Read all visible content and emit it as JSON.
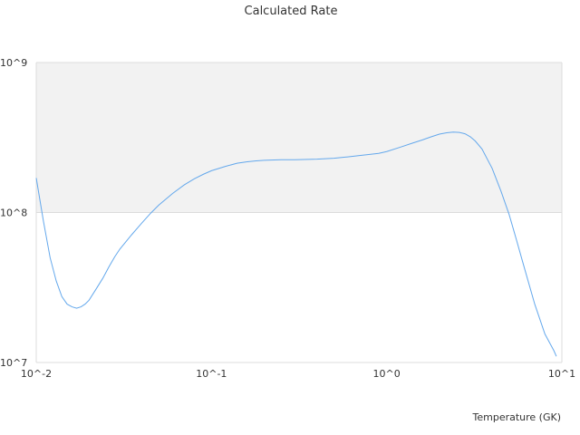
{
  "chart_data": {
    "type": "line",
    "title": "Calculated Rate",
    "xlabel": "Temperature (GK)",
    "ylabel": "",
    "x_scale": "log",
    "y_scale": "log",
    "xlim": [
      0.01,
      10
    ],
    "ylim": [
      10000000,
      1000000000
    ],
    "x_ticks": [
      "10^-2",
      "10^-1",
      "10^0",
      "10^1"
    ],
    "y_ticks": [
      "10^7",
      "10^8",
      "10^9"
    ],
    "grid": true,
    "legend": "none",
    "line_color": "#64a8ec",
    "band_color": "#f2f2f2",
    "series": [
      {
        "x": [
          0.01,
          0.011,
          0.012,
          0.013,
          0.014,
          0.015,
          0.016,
          0.017,
          0.018,
          0.019,
          0.02,
          0.022,
          0.024,
          0.026,
          0.028,
          0.03,
          0.035,
          0.04,
          0.045,
          0.05,
          0.06,
          0.07,
          0.08,
          0.09,
          0.1,
          0.12,
          0.14,
          0.16,
          0.18,
          0.2,
          0.25,
          0.3,
          0.4,
          0.5,
          0.6,
          0.7,
          0.8,
          0.9,
          1.0,
          1.2,
          1.4,
          1.6,
          1.8,
          2.0,
          2.2,
          2.4,
          2.6,
          2.8,
          3.0,
          3.2,
          3.5,
          4.0,
          4.5,
          5.0,
          5.5,
          6.0,
          7.0,
          8.0,
          9.0,
          9.3
        ],
        "y": [
          170000000,
          87000000,
          50000000,
          35000000,
          27500000,
          24500000,
          23500000,
          23000000,
          23500000,
          24500000,
          26000000,
          31000000,
          36500000,
          43500000,
          50500000,
          57000000,
          71000000,
          85000000,
          99000000,
          112000000,
          134000000,
          153000000,
          168000000,
          180000000,
          190000000,
          203000000,
          213000000,
          218000000,
          221000000,
          223000000,
          225000000,
          225000000,
          227000000,
          230000000,
          235000000,
          240000000,
          244000000,
          248000000,
          255000000,
          273000000,
          290000000,
          305000000,
          320000000,
          333000000,
          340000000,
          344000000,
          342000000,
          335000000,
          320000000,
          300000000,
          265000000,
          197000000,
          138000000,
          97000000,
          66000000,
          46000000,
          24500000,
          15500000,
          12000000,
          11000000
        ]
      }
    ]
  }
}
